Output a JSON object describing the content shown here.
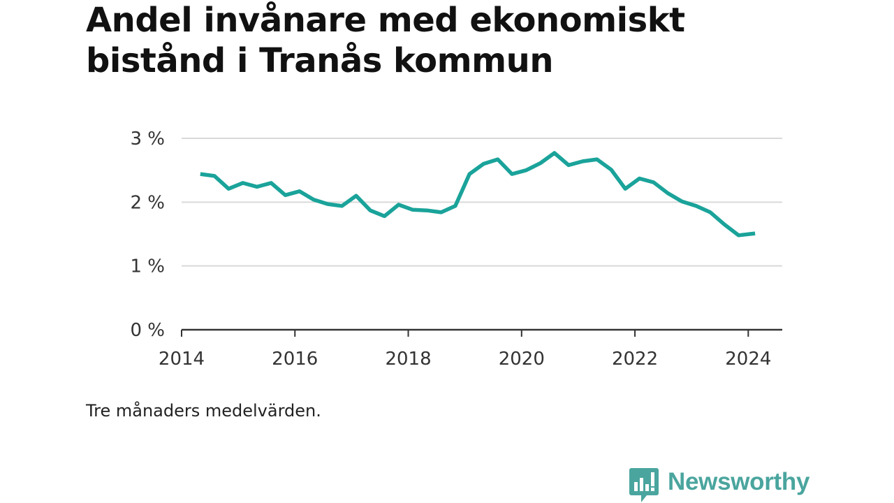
{
  "title": {
    "line1": "Andel invånare med ekonomiskt",
    "line2": "bistånd i Tranås kommun"
  },
  "caption": "Tre månaders medelvärden.",
  "brand": {
    "name": "Newsworthy",
    "color": "#4aa59e",
    "icon": "bar-chart-speech-bubble-icon"
  },
  "chart_data": {
    "type": "line",
    "title": "Andel invånare med ekonomiskt bistånd i Tranås kommun",
    "xlabel": "",
    "ylabel": "",
    "x_range": [
      2014,
      2024.6
    ],
    "ylim": [
      0,
      3
    ],
    "x_ticks": [
      {
        "value": 2014,
        "label": "2014"
      },
      {
        "value": 2016,
        "label": "2016"
      },
      {
        "value": 2018,
        "label": "2018"
      },
      {
        "value": 2020,
        "label": "2020"
      },
      {
        "value": 2022,
        "label": "2022"
      },
      {
        "value": 2024,
        "label": "2024"
      }
    ],
    "y_ticks": [
      {
        "value": 0,
        "label": "0 %"
      },
      {
        "value": 1,
        "label": "1 %"
      },
      {
        "value": 2,
        "label": "2 %"
      },
      {
        "value": 3,
        "label": "3 %"
      }
    ],
    "grid": true,
    "line_color": "#1aa39a",
    "series": [
      {
        "x": [
          2014.33,
          2014.58,
          2014.83,
          2015.08,
          2015.33,
          2015.58,
          2015.83,
          2016.08,
          2016.33,
          2016.58,
          2016.83,
          2017.08,
          2017.33,
          2017.58,
          2017.83,
          2018.08,
          2018.33,
          2018.58,
          2018.83,
          2019.08,
          2019.33,
          2019.58,
          2019.83,
          2020.08,
          2020.33,
          2020.58,
          2020.83,
          2021.08,
          2021.33,
          2021.58,
          2021.83,
          2022.08,
          2022.33,
          2022.58,
          2022.83,
          2023.08,
          2023.33,
          2023.58,
          2023.83,
          2024.12
        ],
        "values": [
          2.44,
          2.41,
          2.21,
          2.3,
          2.24,
          2.3,
          2.11,
          2.17,
          2.04,
          1.97,
          1.94,
          2.1,
          1.87,
          1.78,
          1.96,
          1.88,
          1.87,
          1.84,
          1.94,
          2.44,
          2.6,
          2.67,
          2.44,
          2.5,
          2.61,
          2.77,
          2.58,
          2.64,
          2.67,
          2.51,
          2.21,
          2.37,
          2.31,
          2.14,
          2.01,
          1.94,
          1.84,
          1.65,
          1.48,
          1.51
        ]
      }
    ]
  }
}
